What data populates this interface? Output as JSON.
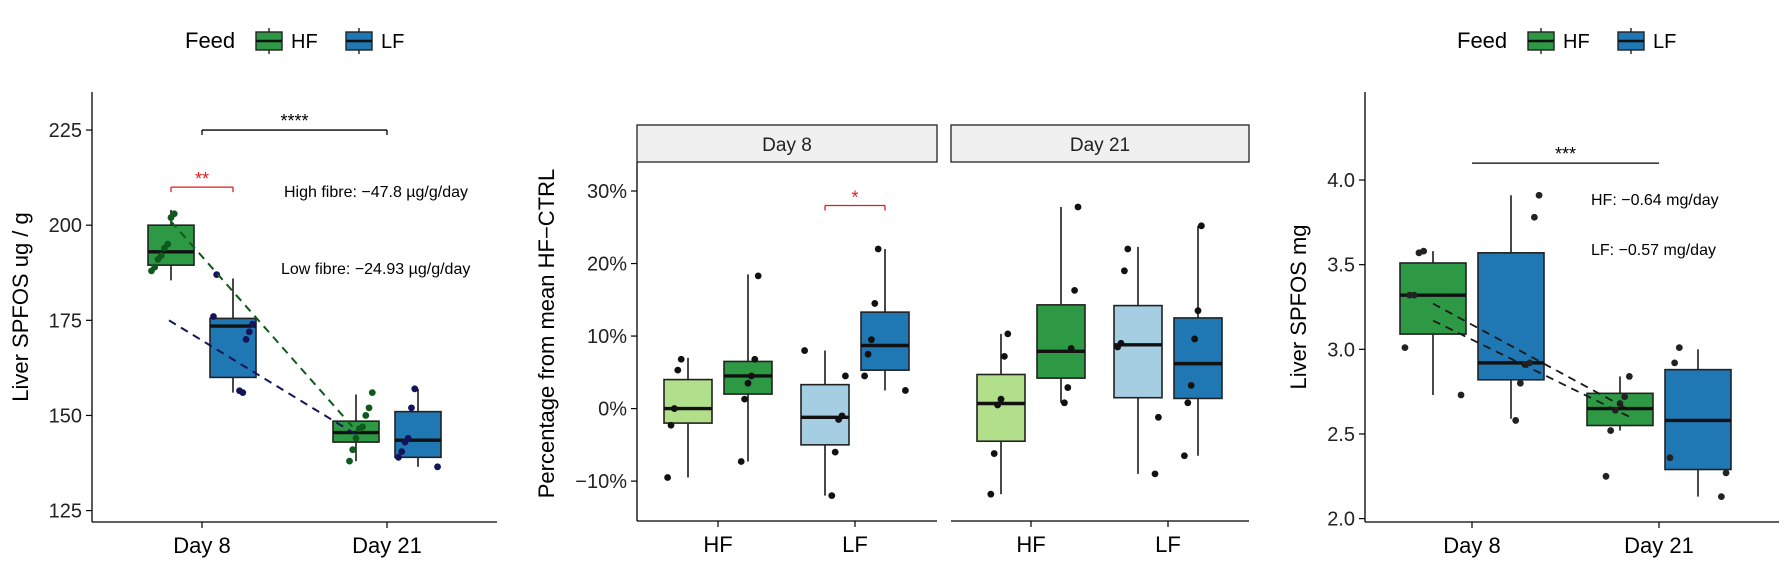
{
  "legend_title": "Feed",
  "legend_items": [
    {
      "label": "HF",
      "color": "#2e9944"
    },
    {
      "label": "LF",
      "color": "#1f78b4"
    }
  ],
  "chart_data": [
    {
      "type": "box",
      "title": "",
      "ylabel": "Liver SPFOS ug / g",
      "xlabel": "",
      "ylim": [
        122,
        235
      ],
      "yticks": [
        125,
        150,
        175,
        200,
        225
      ],
      "ytick_labels": [
        "125",
        "150",
        "175",
        "200",
        "225"
      ],
      "categories": [
        "Day 8",
        "Day 21"
      ],
      "grid": false,
      "series": [
        {
          "name": "HF",
          "color": "#2e9944",
          "point_color": "#0d5a1c",
          "line_color": "#0d5a1c",
          "boxes": [
            {
              "category": "Day 8",
              "whisker_low": 185.5,
              "q1": 189.5,
              "median": 193,
              "q3": 200,
              "whisker_high": 204,
              "points": [
                188,
                189,
                191,
                192,
                194,
                195,
                202,
                203
              ]
            },
            {
              "category": "Day 21",
              "whisker_low": 138,
              "q1": 143,
              "median": 145.5,
              "q3": 148.5,
              "whisker_high": 155.5,
              "points": [
                138,
                141,
                144,
                146.5,
                147,
                150,
                152,
                156
              ]
            }
          ]
        },
        {
          "name": "LF",
          "color": "#1f78b4",
          "point_color": "#14145a",
          "line_color": "#14145a",
          "boxes": [
            {
              "category": "Day 8",
              "whisker_low": 156,
              "q1": 160,
              "median": 173.5,
              "q3": 175.5,
              "whisker_high": 186,
              "points": [
                156.5,
                156,
                170,
                172,
                174,
                176,
                187
              ]
            },
            {
              "category": "Day 21",
              "whisker_low": 136.5,
              "q1": 139,
              "median": 143.5,
              "q3": 151,
              "whisker_high": 157,
              "points": [
                136.5,
                139,
                140.5,
                143,
                144,
                152,
                157
              ]
            }
          ]
        }
      ],
      "trend_lines": [
        {
          "series": "HF",
          "from": 201,
          "to": 146
        },
        {
          "series": "LF",
          "from": 175,
          "to": 145
        }
      ],
      "brackets": [
        {
          "label": "****",
          "from": "Day 8",
          "to": "Day 21",
          "y": 225,
          "color": "#000000"
        },
        {
          "label": "**",
          "from": "Day 8 HF",
          "to": "Day 8 LF",
          "y": 210,
          "color": "#e41a1c"
        }
      ],
      "annotations": [
        {
          "text": "High fibre: −47.8 µg/g/day"
        },
        {
          "text": "Low fibre: −24.93 µg/g/day"
        }
      ]
    },
    {
      "type": "box",
      "title": "",
      "ylabel": "Percentage from mean HF−CTRL",
      "xlabel": "",
      "ylim": [
        -15.5,
        34
      ],
      "yticks": [
        -10,
        0,
        10,
        20,
        30
      ],
      "ytick_labels": [
        "−10%",
        "0%",
        "10%",
        "20%",
        "30%"
      ],
      "grid": false,
      "facets": [
        {
          "label": "Day 8",
          "categories": [
            "HF",
            "LF"
          ],
          "groups": [
            {
              "category": "HF",
              "boxes": [
                {
                  "color": "#b2df8a",
                  "whisker_low": -9.5,
                  "q1": -2,
                  "median": 0,
                  "q3": 4,
                  "whisker_high": 7,
                  "points": [
                    -9.5,
                    -2.3,
                    0,
                    5.3,
                    6.8
                  ]
                },
                {
                  "color": "#2e9944",
                  "whisker_low": -7.3,
                  "q1": 2,
                  "median": 4.5,
                  "q3": 6.5,
                  "whisker_high": 18.5,
                  "points": [
                    -7.3,
                    1.3,
                    3.5,
                    4.5,
                    6.8,
                    18.3
                  ]
                }
              ]
            },
            {
              "category": "LF",
              "boxes": [
                {
                  "color": "#a6cee3",
                  "whisker_low": -12,
                  "q1": -5,
                  "median": -1.2,
                  "q3": 3.3,
                  "whisker_high": 8,
                  "points": [
                    -12,
                    -6,
                    -1.5,
                    -1,
                    4.5,
                    8
                  ]
                },
                {
                  "color": "#1f78b4",
                  "whisker_low": 2.5,
                  "q1": 5.3,
                  "median": 8.7,
                  "q3": 13.3,
                  "whisker_high": 22,
                  "points": [
                    2.5,
                    4.5,
                    7.5,
                    9.5,
                    14.5,
                    22
                  ]
                }
              ]
            }
          ]
        },
        {
          "label": "Day 21",
          "categories": [
            "HF",
            "LF"
          ],
          "groups": [
            {
              "category": "HF",
              "boxes": [
                {
                  "color": "#b2df8a",
                  "whisker_low": -11.8,
                  "q1": -4.5,
                  "median": 0.7,
                  "q3": 4.7,
                  "whisker_high": 10.3,
                  "points": [
                    -11.8,
                    -6.2,
                    0.5,
                    1.3,
                    7.2,
                    10.3
                  ]
                },
                {
                  "color": "#2e9944",
                  "whisker_low": 0.8,
                  "q1": 4.2,
                  "median": 7.9,
                  "q3": 14.3,
                  "whisker_high": 27.8,
                  "points": [
                    0.8,
                    2.9,
                    8.3,
                    16.3,
                    27.8
                  ]
                }
              ]
            },
            {
              "category": "LF",
              "boxes": [
                {
                  "color": "#a6cee3",
                  "whisker_low": -9,
                  "q1": 1.5,
                  "median": 8.8,
                  "q3": 14.2,
                  "whisker_high": 22.3,
                  "points": [
                    -9,
                    -1.2,
                    8.5,
                    9,
                    19,
                    22
                  ]
                },
                {
                  "color": "#1f78b4",
                  "whisker_low": -6.5,
                  "q1": 1.4,
                  "median": 6.2,
                  "q3": 12.5,
                  "whisker_high": 25.2,
                  "points": [
                    -6.5,
                    0.8,
                    3.2,
                    9.6,
                    13.5,
                    25.2
                  ]
                }
              ]
            }
          ]
        }
      ],
      "brackets": [
        {
          "label": "*",
          "facet": "Day 8",
          "between": "LF",
          "y": 28,
          "color": "#e41a1c"
        }
      ]
    },
    {
      "type": "box",
      "title": "",
      "ylabel": "Liver SPFOS mg",
      "xlabel": "",
      "ylim": [
        1.98,
        4.52
      ],
      "yticks": [
        2.0,
        2.5,
        3.0,
        3.5,
        4.0
      ],
      "ytick_labels": [
        "2.0",
        "2.5",
        "3.0",
        "3.5",
        "4.0"
      ],
      "categories": [
        "Day 8",
        "Day 21"
      ],
      "grid": false,
      "series": [
        {
          "name": "HF",
          "color": "#2e9944",
          "point_color": "#222222",
          "boxes": [
            {
              "category": "Day 8",
              "whisker_low": 2.73,
              "q1": 3.09,
              "median": 3.32,
              "q3": 3.51,
              "whisker_high": 3.58,
              "points": [
                2.73,
                3.01,
                3.32,
                3.32,
                3.57,
                3.58
              ]
            },
            {
              "category": "Day 21",
              "whisker_low": 2.52,
              "q1": 2.55,
              "median": 2.65,
              "q3": 2.74,
              "whisker_high": 2.84,
              "points": [
                2.25,
                2.52,
                2.64,
                2.68,
                2.72,
                2.84
              ]
            }
          ]
        },
        {
          "name": "LF",
          "color": "#1f78b4",
          "point_color": "#222222",
          "boxes": [
            {
              "category": "Day 8",
              "whisker_low": 2.59,
              "q1": 2.82,
              "median": 2.92,
              "q3": 3.57,
              "whisker_high": 3.91,
              "points": [
                2.58,
                2.8,
                2.91,
                2.92,
                3.78,
                3.91
              ]
            },
            {
              "category": "Day 21",
              "whisker_low": 2.13,
              "q1": 2.29,
              "median": 2.58,
              "q3": 2.88,
              "whisker_high": 3.0,
              "points": [
                2.13,
                2.27,
                2.36,
                2.92,
                3.01
              ]
            }
          ]
        }
      ],
      "trend_lines": [
        {
          "series": "HF",
          "from": 3.27,
          "to": 2.64
        },
        {
          "series": "LF",
          "from": 3.17,
          "to": 2.6
        }
      ],
      "brackets": [
        {
          "label": "***",
          "from": "Day 8",
          "to": "Day 21",
          "y": 4.1,
          "color": "#000000"
        }
      ],
      "annotations": [
        {
          "text": "HF: −0.64 mg/day"
        },
        {
          "text": "LF: −0.57 mg/day"
        }
      ]
    }
  ]
}
